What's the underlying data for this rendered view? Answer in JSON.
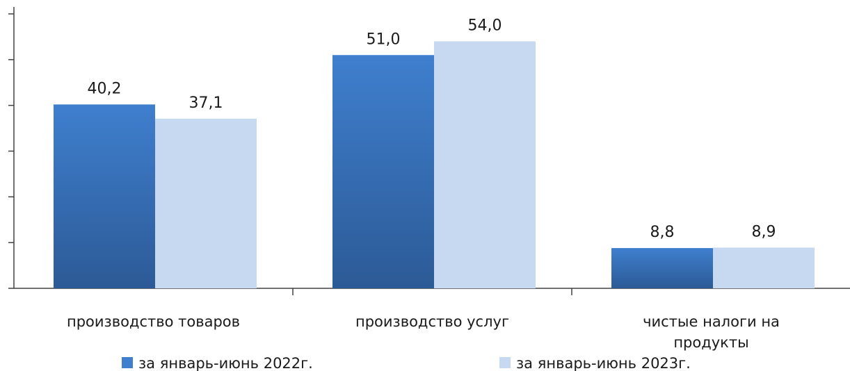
{
  "chart_data": {
    "type": "bar",
    "title": "",
    "xlabel": "",
    "ylabel": "",
    "ylim": [
      0,
      60
    ],
    "grid": false,
    "legend_position": "bottom",
    "categories": [
      [
        "производство товаров"
      ],
      [
        "производство услуг"
      ],
      [
        "чистые налоги на",
        "продукты"
      ]
    ],
    "series": [
      {
        "name": "за январь-июнь 2022г.",
        "values": [
          40.2,
          51.0,
          8.8
        ],
        "labels": [
          "40,2",
          "51,0",
          "8,8"
        ]
      },
      {
        "name": "за январь-июнь 2023г.",
        "values": [
          37.1,
          54.0,
          8.9
        ],
        "labels": [
          "37,1",
          "54,0",
          "8,9"
        ]
      }
    ]
  },
  "colors": {
    "series_2022_top": "#3f7fce",
    "series_2022_bottom": "#2c5a96",
    "series_2023": "#c6d9f0",
    "axis": "#404040"
  }
}
